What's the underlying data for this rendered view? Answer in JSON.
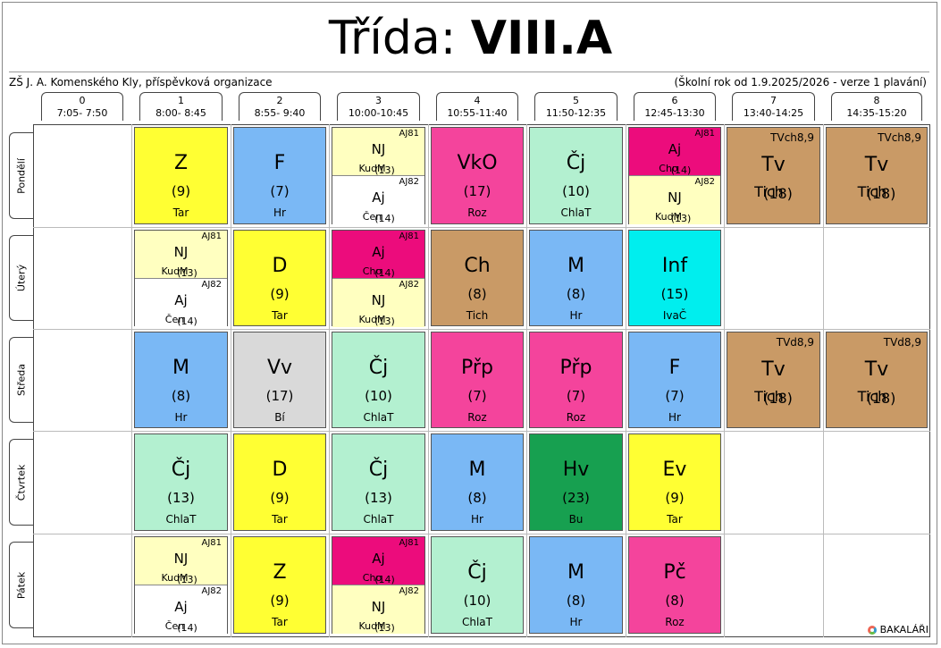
{
  "title": {
    "prefix": "Třída:",
    "klass": "VIII.A"
  },
  "school": "ZŠ J. A. Komenského Kly, příspěvková organizace",
  "year": "(Školní rok od 1.9.2025/2026 - verze 1 plavání)",
  "columns": [
    {
      "num": "0",
      "time": "7:05- 7:50"
    },
    {
      "num": "1",
      "time": "8:00- 8:45"
    },
    {
      "num": "2",
      "time": "8:55- 9:40"
    },
    {
      "num": "3",
      "time": "10:00-10:45"
    },
    {
      "num": "4",
      "time": "10:55-11:40"
    },
    {
      "num": "5",
      "time": "11:50-12:35"
    },
    {
      "num": "6",
      "time": "12:45-13:30"
    },
    {
      "num": "7",
      "time": "13:40-14:25"
    },
    {
      "num": "8",
      "time": "14:35-15:20"
    }
  ],
  "days": [
    "Pondělí",
    "Úterý",
    "Středa",
    "Čtvrtek",
    "Pátek"
  ],
  "lessons": [
    [
      null,
      {
        "s": "Z",
        "r": "(9)",
        "t": "Tar",
        "c": "#ffff33"
      },
      {
        "s": "F",
        "r": "(7)",
        "t": "Hr",
        "c": "#7ab8f5"
      },
      {
        "split": [
          {
            "g": "AJ81",
            "s": "NJ",
            "r": "(13)",
            "t": "KudM",
            "c": "#ffffc0"
          },
          {
            "g": "AJ82",
            "s": "Aj",
            "r": "(14)",
            "t": "Čen",
            "c": "#ffffff"
          }
        ]
      },
      {
        "s": "VkO",
        "r": "(17)",
        "t": "Roz",
        "c": "#f4449c"
      },
      {
        "s": "Čj",
        "r": "(10)",
        "t": "ChlaT",
        "c": "#b3f0d0"
      },
      {
        "split": [
          {
            "g": "AJ81",
            "s": "Aj",
            "r": "(14)",
            "t": "Cho",
            "c": "#ec0c7c"
          },
          {
            "g": "AJ82",
            "s": "NJ",
            "r": "(13)",
            "t": "KudM",
            "c": "#ffffc0"
          }
        ]
      },
      {
        "tv": true,
        "g": "TVch8,9",
        "s": "Tv",
        "r": "(18)",
        "t": "Tich",
        "c": "#c99a66"
      },
      {
        "tv": true,
        "g": "TVch8,9",
        "s": "Tv",
        "r": "(18)",
        "t": "Tich",
        "c": "#c99a66"
      }
    ],
    [
      null,
      {
        "split": [
          {
            "g": "AJ81",
            "s": "NJ",
            "r": "(13)",
            "t": "KudM",
            "c": "#ffffc0"
          },
          {
            "g": "AJ82",
            "s": "Aj",
            "r": "(14)",
            "t": "Čen",
            "c": "#ffffff"
          }
        ]
      },
      {
        "s": "D",
        "r": "(9)",
        "t": "Tar",
        "c": "#ffff33"
      },
      {
        "split": [
          {
            "g": "AJ81",
            "s": "Aj",
            "r": "(14)",
            "t": "Cho",
            "c": "#ec0c7c"
          },
          {
            "g": "AJ82",
            "s": "NJ",
            "r": "(13)",
            "t": "KudM",
            "c": "#ffffc0"
          }
        ]
      },
      {
        "s": "Ch",
        "r": "(8)",
        "t": "Tich",
        "c": "#c99a66"
      },
      {
        "s": "M",
        "r": "(8)",
        "t": "Hr",
        "c": "#7ab8f5"
      },
      {
        "s": "Inf",
        "r": "(15)",
        "t": "IvaČ",
        "c": "#00eeee"
      },
      null,
      null
    ],
    [
      null,
      {
        "s": "M",
        "r": "(8)",
        "t": "Hr",
        "c": "#7ab8f5"
      },
      {
        "s": "Vv",
        "r": "(17)",
        "t": "Bí",
        "c": "#d9d9d9"
      },
      {
        "s": "Čj",
        "r": "(10)",
        "t": "ChlaT",
        "c": "#b3f0d0"
      },
      {
        "s": "Přp",
        "r": "(7)",
        "t": "Roz",
        "c": "#f4449c"
      },
      {
        "s": "Přp",
        "r": "(7)",
        "t": "Roz",
        "c": "#f4449c"
      },
      {
        "s": "F",
        "r": "(7)",
        "t": "Hr",
        "c": "#7ab8f5"
      },
      {
        "tv": true,
        "g": "TVd8,9",
        "s": "Tv",
        "r": "(18)",
        "t": "Tich",
        "c": "#c99a66"
      },
      {
        "tv": true,
        "g": "TVd8,9",
        "s": "Tv",
        "r": "(18)",
        "t": "Tich",
        "c": "#c99a66"
      }
    ],
    [
      null,
      {
        "s": "Čj",
        "r": "(13)",
        "t": "ChlaT",
        "c": "#b3f0d0"
      },
      {
        "s": "D",
        "r": "(9)",
        "t": "Tar",
        "c": "#ffff33"
      },
      {
        "s": "Čj",
        "r": "(13)",
        "t": "ChlaT",
        "c": "#b3f0d0"
      },
      {
        "s": "M",
        "r": "(8)",
        "t": "Hr",
        "c": "#7ab8f5"
      },
      {
        "s": "Hv",
        "r": "(23)",
        "t": "Bu",
        "c": "#17a050"
      },
      {
        "s": "Ev",
        "r": "(9)",
        "t": "Tar",
        "c": "#ffff33"
      },
      null,
      null
    ],
    [
      null,
      {
        "split": [
          {
            "g": "AJ81",
            "s": "NJ",
            "r": "(13)",
            "t": "KudM",
            "c": "#ffffc0"
          },
          {
            "g": "AJ82",
            "s": "Aj",
            "r": "(14)",
            "t": "Čen",
            "c": "#ffffff"
          }
        ]
      },
      {
        "s": "Z",
        "r": "(9)",
        "t": "Tar",
        "c": "#ffff33"
      },
      {
        "split": [
          {
            "g": "AJ81",
            "s": "Aj",
            "r": "(14)",
            "t": "Cho",
            "c": "#ec0c7c"
          },
          {
            "g": "AJ82",
            "s": "NJ",
            "r": "(13)",
            "t": "KudM",
            "c": "#ffffc0"
          }
        ]
      },
      {
        "s": "Čj",
        "r": "(10)",
        "t": "ChlaT",
        "c": "#b3f0d0"
      },
      {
        "s": "M",
        "r": "(8)",
        "t": "Hr",
        "c": "#7ab8f5"
      },
      {
        "s": "Pč",
        "r": "(8)",
        "t": "Roz",
        "c": "#f4449c"
      },
      null,
      null
    ]
  ],
  "logo": "BAKALÁŘI"
}
